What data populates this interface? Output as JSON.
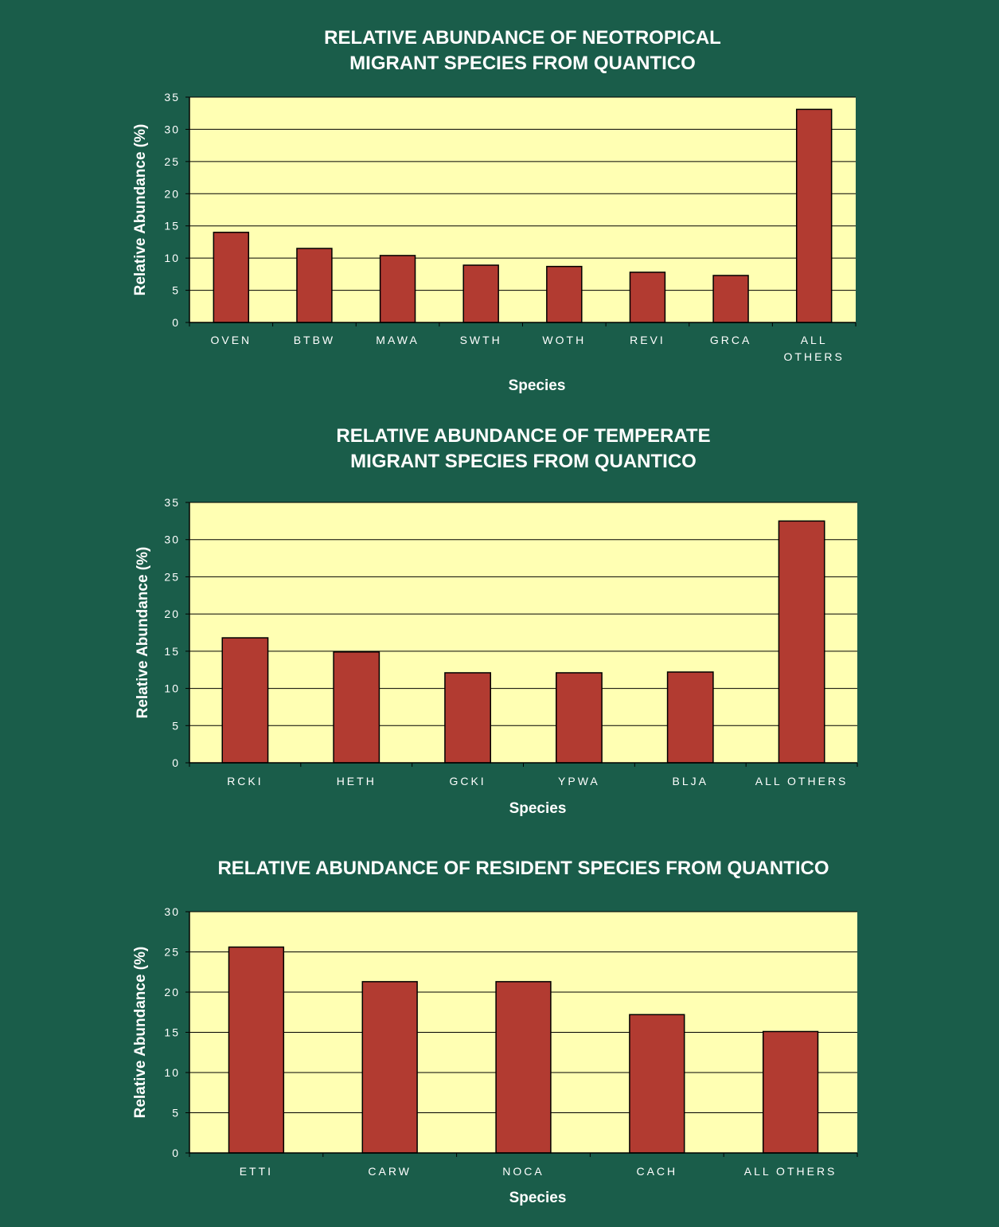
{
  "colors": {
    "background": "#1a5d4a",
    "plot_area": "#ffffb3",
    "bar_fill": "#b23b31",
    "bar_stroke": "#000000",
    "gridline": "#000000",
    "text": "#ffffff"
  },
  "chart_data": [
    {
      "type": "bar",
      "title_lines": [
        "RELATIVE ABUNDANCE OF NEOTROPICAL",
        "MIGRANT SPECIES FROM QUANTICO"
      ],
      "xlabel": "Species",
      "ylabel": "Relative Abundance (%)",
      "ylim": [
        0,
        35
      ],
      "yticks": [
        0,
        5,
        10,
        15,
        20,
        25,
        30,
        35
      ],
      "grid": true,
      "legend": "none",
      "categories": [
        [
          "OVEN"
        ],
        [
          "BTBW"
        ],
        [
          "MAWA"
        ],
        [
          "SWTH"
        ],
        [
          "WOTH"
        ],
        [
          "REVI"
        ],
        [
          "GRCA"
        ],
        [
          "ALL",
          "OTHERS"
        ]
      ],
      "values": [
        14.0,
        11.5,
        10.4,
        8.9,
        8.7,
        7.8,
        7.3,
        33.1
      ]
    },
    {
      "type": "bar",
      "title_lines": [
        "RELATIVE ABUNDANCE OF TEMPERATE",
        "MIGRANT SPECIES FROM QUANTICO"
      ],
      "xlabel": "Species",
      "ylabel": "Relative Abundance (%)",
      "ylim": [
        0,
        35
      ],
      "yticks": [
        0,
        5,
        10,
        15,
        20,
        25,
        30,
        35
      ],
      "grid": true,
      "legend": "none",
      "categories": [
        [
          "RCKI"
        ],
        [
          "HETH"
        ],
        [
          "GCKI"
        ],
        [
          "YPWA"
        ],
        [
          "BLJA"
        ],
        [
          "ALL OTHERS"
        ]
      ],
      "values": [
        16.8,
        14.9,
        12.1,
        12.1,
        12.2,
        32.5
      ]
    },
    {
      "type": "bar",
      "title_lines": [
        "RELATIVE ABUNDANCE OF RESIDENT SPECIES FROM QUANTICO"
      ],
      "xlabel": "Species",
      "ylabel": "Relative Abundance (%)",
      "ylim": [
        0,
        30
      ],
      "yticks": [
        0,
        5,
        10,
        15,
        20,
        25,
        30
      ],
      "grid": true,
      "legend": "none",
      "categories": [
        [
          "ETTI"
        ],
        [
          "CARW"
        ],
        [
          "NOCA"
        ],
        [
          "CACH"
        ],
        [
          "ALL OTHERS"
        ]
      ],
      "values": [
        25.6,
        21.3,
        21.3,
        17.2,
        15.1
      ]
    }
  ]
}
